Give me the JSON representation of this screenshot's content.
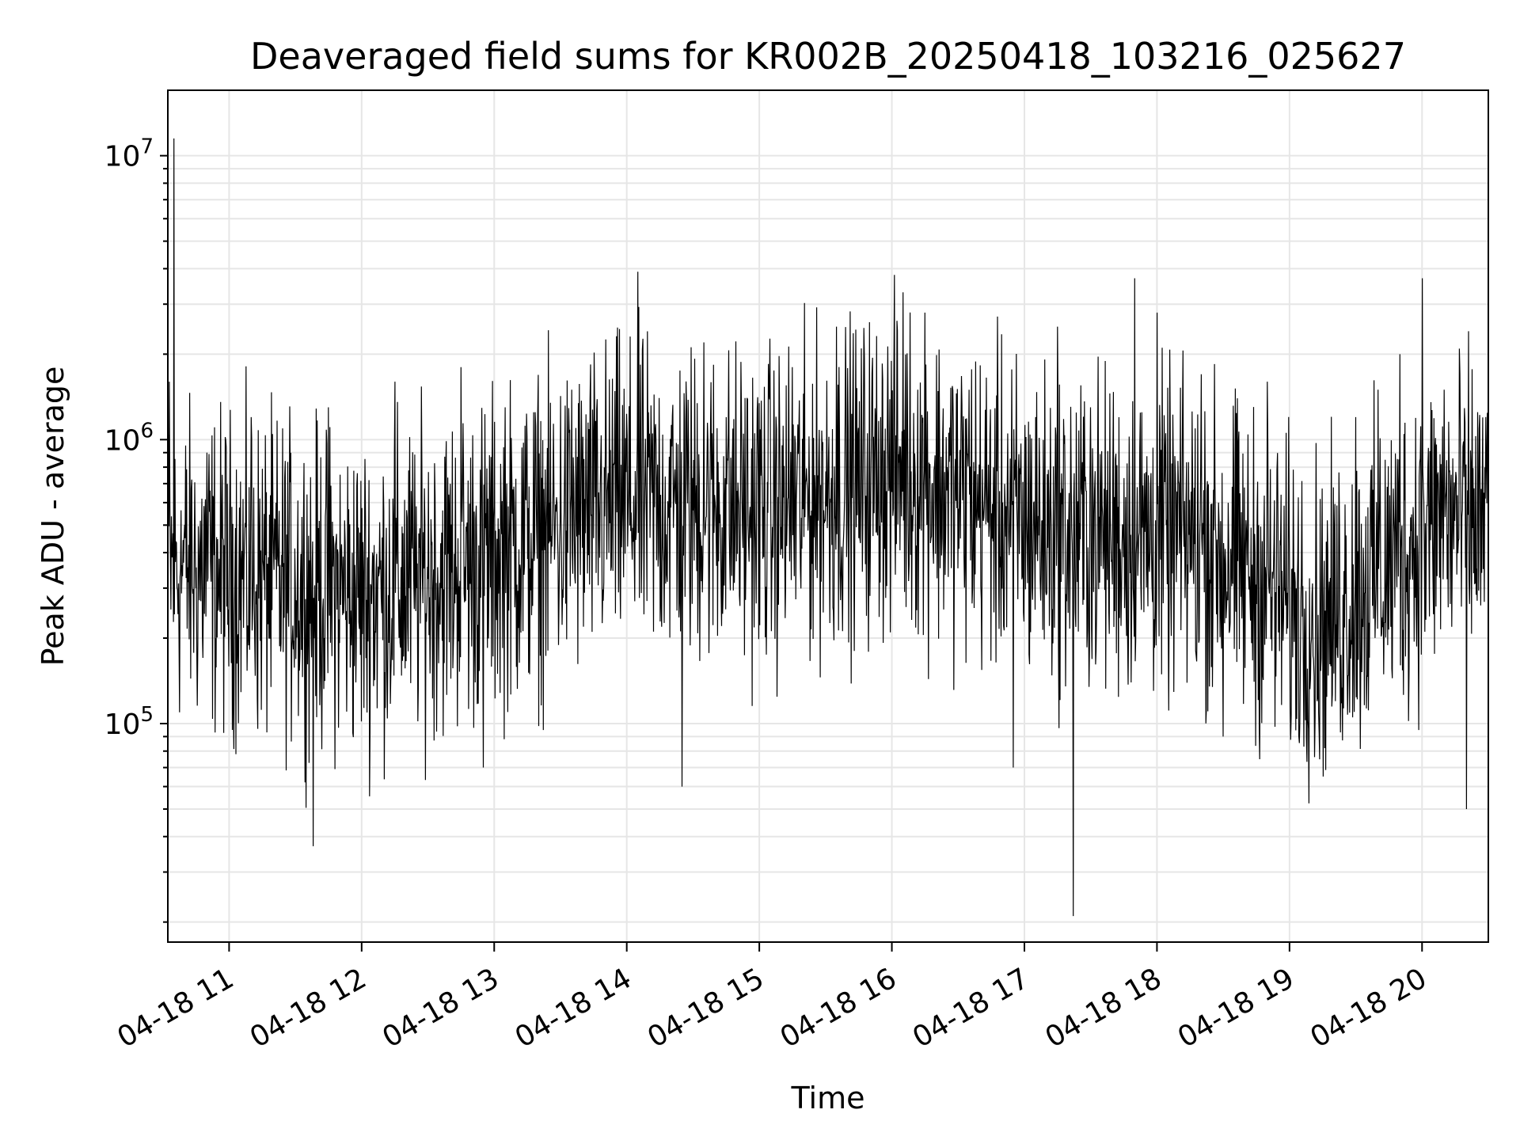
{
  "chart_data": {
    "type": "line",
    "title": "Deaveraged field sums for KR002B_20250418_103216_025627",
    "xlabel": "Time",
    "ylabel": "Peak ADU - average",
    "xscale": "time",
    "yscale": "log",
    "xlim": [
      "2025-04-18 10:32:16",
      "2025-04-18 20:30:00"
    ],
    "ylim": [
      17000,
      17000000
    ],
    "grid": true,
    "x_tick_labels": [
      "04-18 11",
      "04-18 12",
      "04-18 13",
      "04-18 14",
      "04-18 15",
      "04-18 16",
      "04-18 17",
      "04-18 18",
      "04-18 19",
      "04-18 20"
    ],
    "y_tick_labels": [
      {
        "base": "10",
        "exp": "5",
        "value": 100000
      },
      {
        "base": "10",
        "exp": "6",
        "value": 1000000
      },
      {
        "base": "10",
        "exp": "7",
        "value": 10000000
      }
    ],
    "series": [
      {
        "color": "#000000",
        "x": [
          "2025-04-18 10:33",
          "2025-04-18 10:35",
          "2025-04-18 10:38",
          "2025-04-18 10:40",
          "2025-04-18 10:45",
          "2025-04-18 10:50",
          "2025-04-18 10:55",
          "2025-04-18 11:00",
          "2025-04-18 11:10",
          "2025-04-18 11:20",
          "2025-04-18 11:30",
          "2025-04-18 11:38",
          "2025-04-18 11:45",
          "2025-04-18 11:55",
          "2025-04-18 12:05",
          "2025-04-18 12:15",
          "2025-04-18 12:25",
          "2025-04-18 12:35",
          "2025-04-18 12:45",
          "2025-04-18 12:55",
          "2025-04-18 13:05",
          "2025-04-18 13:15",
          "2025-04-18 13:25",
          "2025-04-18 13:35",
          "2025-04-18 13:45",
          "2025-04-18 13:55",
          "2025-04-18 14:05",
          "2025-04-18 14:15",
          "2025-04-18 14:25",
          "2025-04-18 14:35",
          "2025-04-18 14:45",
          "2025-04-18 14:55",
          "2025-04-18 15:05",
          "2025-04-18 15:15",
          "2025-04-18 15:25",
          "2025-04-18 15:35",
          "2025-04-18 15:45",
          "2025-04-18 15:55",
          "2025-04-18 16:05",
          "2025-04-18 16:15",
          "2025-04-18 16:25",
          "2025-04-18 16:35",
          "2025-04-18 16:45",
          "2025-04-18 16:55",
          "2025-04-18 17:05",
          "2025-04-18 17:15",
          "2025-04-18 17:22",
          "2025-04-18 17:30",
          "2025-04-18 17:40",
          "2025-04-18 17:50",
          "2025-04-18 18:00",
          "2025-04-18 18:10",
          "2025-04-18 18:20",
          "2025-04-18 18:30",
          "2025-04-18 18:40",
          "2025-04-18 18:50",
          "2025-04-18 19:00",
          "2025-04-18 19:10",
          "2025-04-18 19:20",
          "2025-04-18 19:30",
          "2025-04-18 19:40",
          "2025-04-18 19:50",
          "2025-04-18 20:00",
          "2025-04-18 20:10",
          "2025-04-18 20:20",
          "2025-04-18 20:28"
        ],
        "y": [
          1600000,
          11500000,
          350000,
          450000,
          300000,
          900000,
          250000,
          450000,
          1200000,
          400000,
          300000,
          37000,
          1300000,
          250000,
          400000,
          1600000,
          300000,
          250000,
          1800000,
          70000,
          1300000,
          380000,
          600000,
          1500000,
          450000,
          900000,
          3900000,
          700000,
          60000,
          2200000,
          1200000,
          500000,
          950000,
          1800000,
          750000,
          2500000,
          450000,
          1200000,
          3300000,
          2800000,
          800000,
          1500000,
          550000,
          70000,
          1200000,
          2500000,
          21000,
          1300000,
          800000,
          3700000,
          2800000,
          700000,
          1700000,
          90000,
          400000,
          1600000,
          300000,
          200000,
          150000,
          1200000,
          1500000,
          2000000,
          3700000,
          1500000,
          50000,
          650000
        ]
      }
    ]
  }
}
